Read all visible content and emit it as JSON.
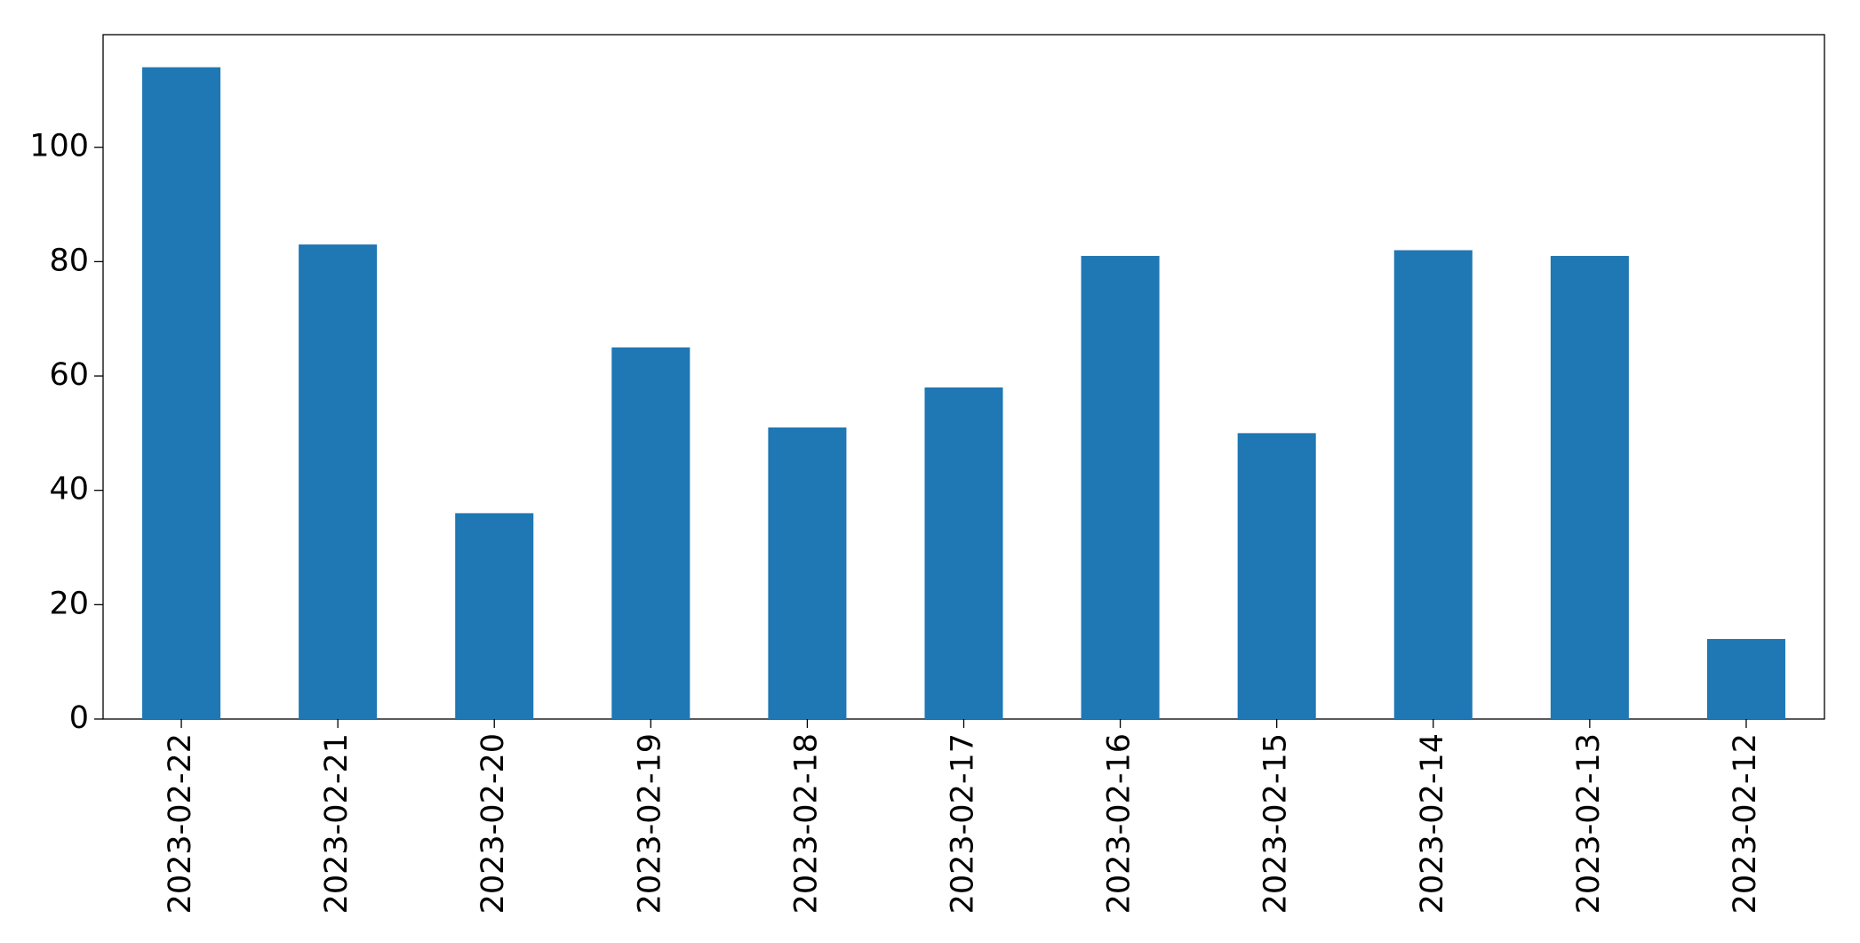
{
  "chart_data": {
    "type": "bar",
    "categories": [
      "2023-02-22",
      "2023-02-21",
      "2023-02-20",
      "2023-02-19",
      "2023-02-18",
      "2023-02-17",
      "2023-02-16",
      "2023-02-15",
      "2023-02-14",
      "2023-02-13",
      "2023-02-12"
    ],
    "values": [
      114,
      83,
      36,
      65,
      51,
      58,
      81,
      50,
      82,
      81,
      14
    ],
    "color": "#1f77b4",
    "ylim": [
      0,
      119.7
    ],
    "yticks": [
      0,
      20,
      40,
      60,
      80,
      100
    ],
    "grid": false
  }
}
